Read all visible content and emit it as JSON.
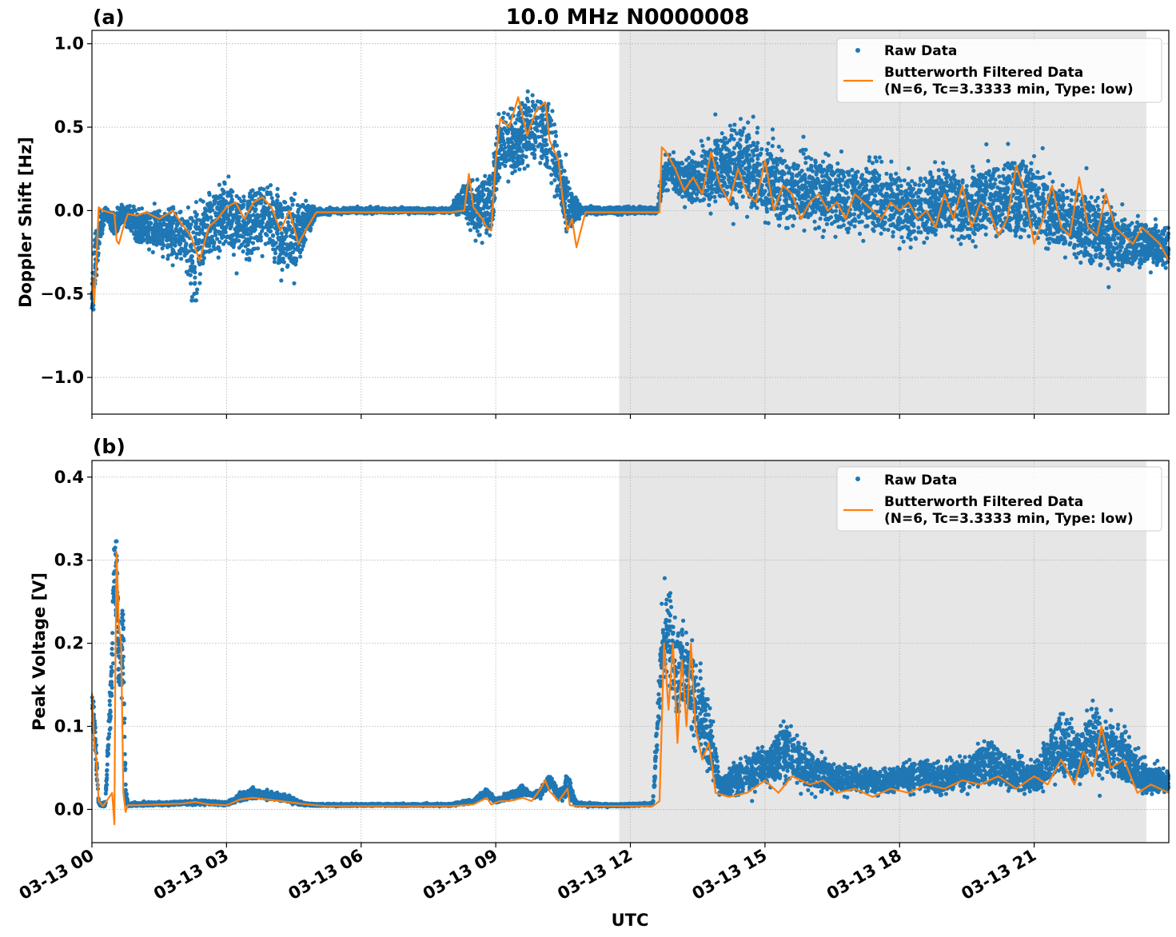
{
  "figure": {
    "suptitle": "10.0 MHz N0000008",
    "xlabel": "UTC"
  },
  "colors": {
    "raw": "#1f77b4",
    "filtered": "#ff7f0e",
    "shade": "#e6e6e6",
    "grid": "#b0b0b0"
  },
  "legend": {
    "raw_label": "Raw Data",
    "filtered_label_line1": "Butterworth Filtered Data",
    "filtered_label_line2": "(N=6, Tc=3.3333 min, Type: low)"
  },
  "chart_data": [
    {
      "type": "scatter",
      "panel_label": "(a)",
      "title": "10.0 MHz N0000008",
      "xlabel": "",
      "ylabel": "Doppler Shift [Hz]",
      "x_unit": "hours UTC on 03-13",
      "xlim": [
        0,
        24
      ],
      "ylim": [
        -1.22,
        1.08
      ],
      "yticks": [
        1.0,
        0.5,
        0.0,
        -0.5,
        -1.0
      ],
      "ytick_labels": [
        "1.0",
        "0.5",
        "0.0",
        "−0.5",
        "−1.0"
      ],
      "shaded_region_hours": [
        11.75,
        23.5
      ],
      "grid": true,
      "legend_location": "upper right",
      "series": [
        {
          "name": "Raw Data",
          "style": "points",
          "envelope": {
            "x": [
              0,
              0.05,
              0.15,
              0.3,
              0.5,
              0.7,
              1.0,
              1.5,
              2.0,
              2.3,
              2.6,
              3.0,
              3.5,
              3.8,
              4.2,
              4.6,
              5.0,
              5.5,
              6.0,
              7.0,
              8.0,
              8.3,
              8.6,
              8.9,
              9.1,
              9.5,
              9.8,
              10.2,
              10.6,
              10.9,
              11.2,
              11.7,
              12.2,
              12.6,
              12.75,
              13.0,
              13.5,
              14.0,
              14.5,
              15.0,
              15.5,
              16.0,
              16.5,
              17.0,
              17.5,
              18.0,
              18.5,
              19.0,
              19.5,
              20.0,
              20.5,
              21.0,
              21.5,
              22.0,
              22.5,
              23.0,
              23.5,
              24.0
            ],
            "lo": [
              -0.8,
              -0.75,
              -0.35,
              -0.05,
              -0.25,
              -0.1,
              -0.3,
              -0.35,
              -0.5,
              -0.8,
              -0.45,
              -0.4,
              -0.55,
              -0.35,
              -0.6,
              -0.55,
              -0.05,
              -0.03,
              -0.03,
              -0.03,
              -0.03,
              -0.1,
              -0.3,
              -0.4,
              0.1,
              0.05,
              0.15,
              0.0,
              -0.3,
              -0.05,
              -0.04,
              -0.04,
              -0.04,
              -0.04,
              0.05,
              0.0,
              -0.1,
              -0.15,
              -0.2,
              -0.25,
              -0.3,
              -0.25,
              -0.35,
              -0.3,
              -0.3,
              -0.35,
              -0.35,
              -0.3,
              -0.4,
              -0.3,
              -0.4,
              -0.35,
              -0.4,
              -0.45,
              -0.6,
              -0.5,
              -0.45,
              -0.5
            ],
            "hi": [
              -0.3,
              0.05,
              0.05,
              0.05,
              0.05,
              0.08,
              0.1,
              0.12,
              0.2,
              0.3,
              0.25,
              0.35,
              0.3,
              0.35,
              0.3,
              0.28,
              0.03,
              0.03,
              0.03,
              0.03,
              0.03,
              0.25,
              0.3,
              0.5,
              0.75,
              0.8,
              0.85,
              0.9,
              0.35,
              0.05,
              0.04,
              0.04,
              0.04,
              0.05,
              0.45,
              0.4,
              0.45,
              0.7,
              0.75,
              0.65,
              0.5,
              0.55,
              0.5,
              0.45,
              0.45,
              0.4,
              0.4,
              0.45,
              0.4,
              0.45,
              0.55,
              0.5,
              0.35,
              0.3,
              0.35,
              0.1,
              0.05,
              0.05
            ]
          }
        },
        {
          "name": "Butterworth Filtered Data\n(N=6, Tc=3.3333 min, Type: low)",
          "style": "line",
          "x": [
            0,
            0.05,
            0.1,
            0.15,
            0.25,
            0.5,
            0.55,
            0.6,
            0.7,
            0.8,
            1.0,
            1.2,
            1.5,
            1.8,
            2.0,
            2.2,
            2.4,
            2.6,
            2.8,
            3.0,
            3.2,
            3.4,
            3.6,
            3.8,
            4.0,
            4.2,
            4.4,
            4.6,
            4.8,
            5.0,
            5.2,
            6.0,
            7.0,
            8.0,
            8.3,
            8.4,
            8.5,
            8.7,
            8.8,
            8.9,
            9.0,
            9.1,
            9.3,
            9.5,
            9.7,
            9.9,
            10.1,
            10.2,
            10.4,
            10.5,
            10.6,
            10.7,
            10.8,
            11.0,
            11.5,
            12.0,
            12.5,
            12.65,
            12.7,
            12.8,
            13.0,
            13.2,
            13.4,
            13.6,
            13.8,
            14.0,
            14.2,
            14.4,
            14.6,
            14.8,
            15.0,
            15.2,
            15.4,
            15.6,
            15.8,
            16.0,
            16.2,
            16.4,
            16.6,
            16.8,
            17.0,
            17.2,
            17.4,
            17.6,
            17.8,
            18.0,
            18.2,
            18.4,
            18.6,
            18.8,
            19.0,
            19.2,
            19.4,
            19.6,
            19.8,
            20.0,
            20.2,
            20.4,
            20.6,
            20.8,
            21.0,
            21.2,
            21.4,
            21.6,
            21.8,
            22.0,
            22.2,
            22.4,
            22.6,
            22.8,
            23.0,
            23.2,
            23.4,
            23.6,
            23.8,
            24.0
          ],
          "y": [
            -0.4,
            -0.55,
            -0.3,
            0.02,
            0.0,
            -0.02,
            -0.18,
            -0.2,
            -0.1,
            -0.02,
            -0.03,
            -0.01,
            -0.05,
            0.0,
            -0.08,
            -0.15,
            -0.3,
            -0.1,
            -0.05,
            0.02,
            0.05,
            -0.05,
            0.05,
            0.08,
            0.02,
            -0.12,
            0.0,
            -0.2,
            -0.1,
            -0.01,
            -0.01,
            -0.01,
            -0.01,
            -0.01,
            0.0,
            0.22,
            0.02,
            -0.05,
            -0.1,
            -0.12,
            0.3,
            0.55,
            0.5,
            0.68,
            0.45,
            0.6,
            0.65,
            0.42,
            0.3,
            0.05,
            -0.12,
            -0.05,
            -0.22,
            -0.01,
            -0.01,
            -0.01,
            -0.01,
            -0.01,
            0.38,
            0.35,
            0.25,
            0.12,
            0.2,
            0.1,
            0.35,
            0.15,
            0.05,
            0.25,
            0.1,
            0.05,
            0.3,
            0.0,
            0.15,
            0.1,
            -0.05,
            0.05,
            0.1,
            0.0,
            0.05,
            -0.05,
            0.1,
            0.05,
            0.0,
            -0.05,
            0.05,
            0.0,
            0.05,
            -0.05,
            0.0,
            -0.1,
            0.1,
            -0.05,
            0.15,
            -0.1,
            0.05,
            0.0,
            -0.15,
            -0.05,
            0.27,
            0.1,
            -0.2,
            -0.05,
            0.15,
            -0.1,
            -0.15,
            0.2,
            -0.1,
            -0.15,
            0.1,
            -0.1,
            -0.15,
            -0.2,
            -0.1,
            -0.15,
            -0.2,
            -0.3
          ]
        }
      ]
    },
    {
      "type": "scatter",
      "panel_label": "(b)",
      "title": "",
      "xlabel": "UTC",
      "ylabel": "Peak Voltage [V]",
      "x_unit": "hours UTC on 03-13",
      "xlim": [
        0,
        24
      ],
      "ylim": [
        -0.04,
        0.42
      ],
      "yticks": [
        0.4,
        0.3,
        0.2,
        0.1,
        0.0
      ],
      "ytick_labels": [
        "0.4",
        "0.3",
        "0.2",
        "0.1",
        "0.0"
      ],
      "xticks_hours": [
        0,
        3,
        6,
        9,
        12,
        15,
        18,
        21
      ],
      "xtick_labels": [
        "03-13 00",
        "03-13 03",
        "03-13 06",
        "03-13 09",
        "03-13 12",
        "03-13 15",
        "03-13 18",
        "03-13 21"
      ],
      "shaded_region_hours": [
        11.75,
        23.5
      ],
      "grid": true,
      "legend_location": "upper right",
      "series": [
        {
          "name": "Raw Data",
          "style": "points",
          "envelope": {
            "x": [
              0,
              0.05,
              0.1,
              0.15,
              0.3,
              0.45,
              0.5,
              0.55,
              0.6,
              0.7,
              0.75,
              0.8,
              1.0,
              2.0,
              2.5,
              3.0,
              3.3,
              3.6,
              4.0,
              4.4,
              4.7,
              5.0,
              6.0,
              7.0,
              8.0,
              8.5,
              8.8,
              9.0,
              9.3,
              9.6,
              9.8,
              10.0,
              10.2,
              10.4,
              10.6,
              10.8,
              11.0,
              11.5,
              12.0,
              12.5,
              12.7,
              12.8,
              13.0,
              13.2,
              13.5,
              13.8,
              14.0,
              14.5,
              15.0,
              15.5,
              16.0,
              16.5,
              17.0,
              17.5,
              18.0,
              18.5,
              19.0,
              19.5,
              20.0,
              20.5,
              21.0,
              21.5,
              22.0,
              22.3,
              22.6,
              23.0,
              23.5,
              24.0
            ],
            "lo": [
              0.1,
              0.05,
              0.01,
              0.002,
              0.002,
              0.1,
              0.2,
              0.15,
              0.05,
              0.1,
              0.0,
              0.002,
              0.002,
              0.003,
              0.003,
              0.003,
              0.005,
              0.008,
              0.007,
              0.005,
              0.003,
              0.003,
              0.003,
              0.003,
              0.003,
              0.005,
              0.01,
              0.005,
              0.008,
              0.01,
              0.015,
              0.01,
              0.02,
              0.005,
              0.002,
              0.003,
              0.002,
              0.002,
              0.003,
              0.003,
              0.08,
              0.1,
              0.05,
              0.06,
              0.02,
              0.005,
              0.005,
              0.005,
              0.005,
              0.005,
              0.005,
              0.005,
              0.005,
              0.005,
              0.005,
              0.005,
              0.005,
              0.005,
              0.005,
              0.005,
              0.005,
              0.005,
              0.005,
              0.01,
              0.005,
              0.005,
              0.005,
              0.005
            ],
            "hi": [
              0.17,
              0.15,
              0.1,
              0.01,
              0.01,
              0.25,
              0.4,
              0.38,
              0.3,
              0.3,
              0.05,
              0.01,
              0.01,
              0.012,
              0.015,
              0.01,
              0.025,
              0.03,
              0.025,
              0.02,
              0.01,
              0.008,
              0.008,
              0.008,
              0.008,
              0.015,
              0.03,
              0.015,
              0.025,
              0.035,
              0.02,
              0.03,
              0.05,
              0.03,
              0.055,
              0.01,
              0.01,
              0.008,
              0.008,
              0.01,
              0.3,
              0.35,
              0.3,
              0.27,
              0.22,
              0.15,
              0.05,
              0.08,
              0.1,
              0.14,
              0.09,
              0.07,
              0.07,
              0.06,
              0.07,
              0.08,
              0.07,
              0.08,
              0.11,
              0.08,
              0.07,
              0.15,
              0.12,
              0.17,
              0.14,
              0.12,
              0.07,
              0.06
            ]
          }
        },
        {
          "name": "Butterworth Filtered Data\n(N=6, Tc=3.3333 min, Type: low)",
          "style": "line",
          "x": [
            0,
            0.05,
            0.1,
            0.15,
            0.25,
            0.45,
            0.5,
            0.52,
            0.55,
            0.6,
            0.65,
            0.7,
            0.75,
            0.8,
            1.0,
            1.5,
            2.0,
            2.3,
            2.6,
            3.0,
            3.3,
            3.6,
            3.9,
            4.2,
            4.5,
            4.8,
            5.2,
            6.0,
            7.0,
            8.0,
            8.5,
            8.8,
            8.9,
            9.1,
            9.3,
            9.6,
            9.8,
            10.0,
            10.1,
            10.2,
            10.4,
            10.6,
            10.65,
            10.8,
            11.0,
            12.0,
            12.5,
            12.65,
            12.75,
            12.85,
            12.95,
            13.05,
            13.15,
            13.25,
            13.35,
            13.45,
            13.6,
            13.75,
            13.9,
            14.2,
            14.6,
            15.0,
            15.3,
            15.6,
            16.0,
            16.3,
            16.6,
            17.0,
            17.4,
            17.8,
            18.2,
            18.6,
            19.0,
            19.4,
            19.8,
            20.2,
            20.6,
            21.0,
            21.3,
            21.6,
            21.9,
            22.1,
            22.3,
            22.5,
            22.7,
            23.0,
            23.3,
            23.6,
            24.0
          ],
          "y": [
            0.14,
            0.08,
            0.06,
            0.01,
            0.004,
            0.02,
            -0.018,
            0.16,
            0.31,
            0.22,
            0.2,
            0.02,
            -0.003,
            0.005,
            0.005,
            0.006,
            0.007,
            0.009,
            0.006,
            0.005,
            0.012,
            0.014,
            0.012,
            0.01,
            0.008,
            0.006,
            0.004,
            0.004,
            0.004,
            0.004,
            0.006,
            0.014,
            0.006,
            0.01,
            0.01,
            0.014,
            0.01,
            0.025,
            0.035,
            0.022,
            0.01,
            0.025,
            0.005,
            0.004,
            0.004,
            0.004,
            0.004,
            0.01,
            0.2,
            0.12,
            0.2,
            0.08,
            0.18,
            0.1,
            0.2,
            0.1,
            0.06,
            0.08,
            0.02,
            0.015,
            0.02,
            0.035,
            0.02,
            0.04,
            0.03,
            0.035,
            0.02,
            0.025,
            0.015,
            0.025,
            0.02,
            0.03,
            0.025,
            0.035,
            0.03,
            0.04,
            0.025,
            0.04,
            0.03,
            0.06,
            0.03,
            0.07,
            0.04,
            0.1,
            0.05,
            0.06,
            0.02,
            0.03,
            0.02
          ]
        }
      ]
    }
  ]
}
